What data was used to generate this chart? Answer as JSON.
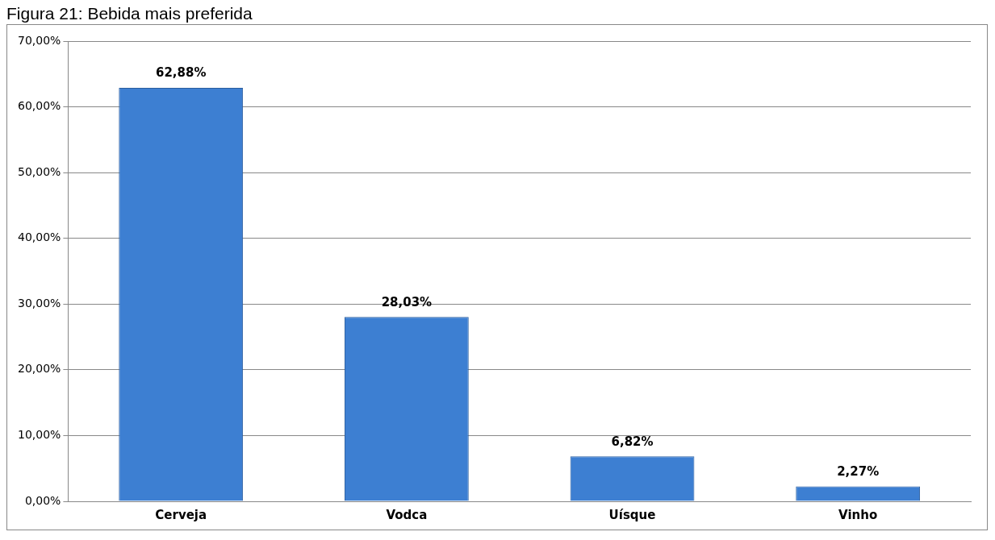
{
  "chart_data": {
    "type": "bar",
    "title": "Figura 21: Bebida mais preferida",
    "categories": [
      "Cerveja",
      "Vodca",
      "Uísque",
      "Vinho"
    ],
    "values": [
      62.88,
      28.03,
      6.82,
      2.27
    ],
    "value_labels": [
      "62,88%",
      "28,03%",
      "6,82%",
      "2,27%"
    ],
    "color": "#3d7fd2",
    "ylim": [
      0,
      70
    ],
    "yticks": [
      {
        "value": 0,
        "label": "0,00%"
      },
      {
        "value": 10,
        "label": "10,00%"
      },
      {
        "value": 20,
        "label": "20,00%"
      },
      {
        "value": 30,
        "label": "30,00%"
      },
      {
        "value": 40,
        "label": "40,00%"
      },
      {
        "value": 50,
        "label": "50,00%"
      },
      {
        "value": 60,
        "label": "60,00%"
      },
      {
        "value": 70,
        "label": "70,00%"
      }
    ],
    "grid": "y"
  }
}
